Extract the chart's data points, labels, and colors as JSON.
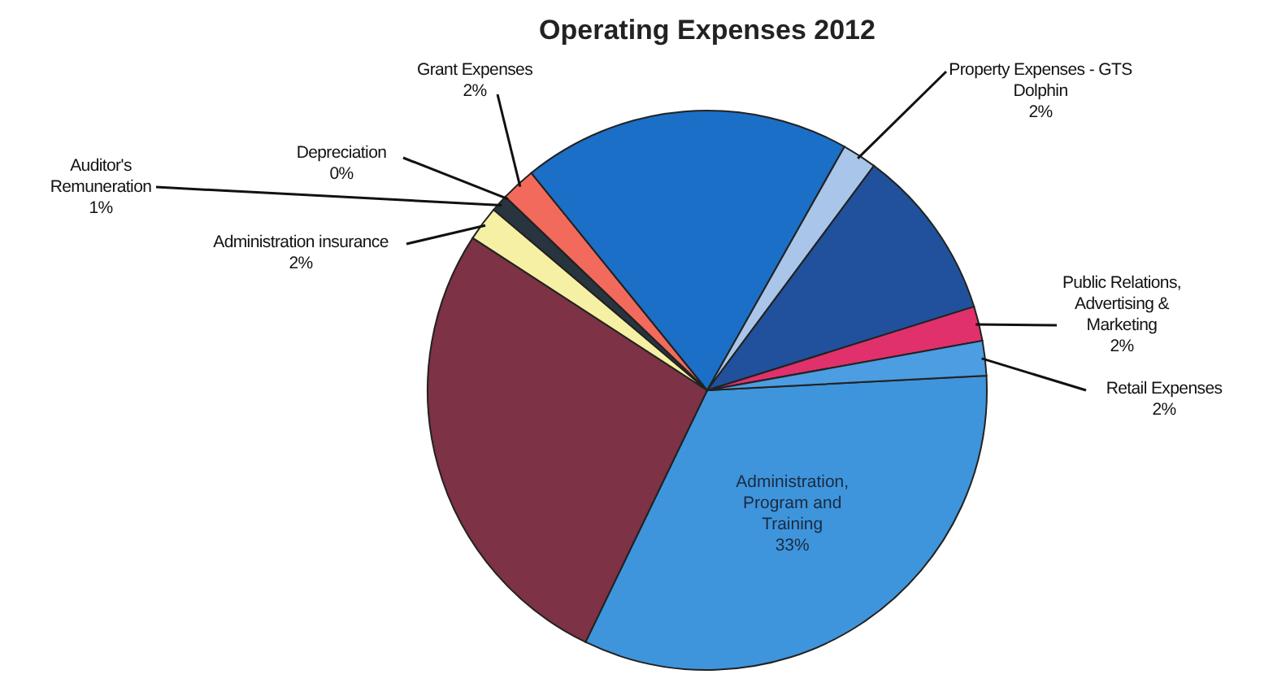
{
  "chart_data": {
    "type": "pie",
    "title": "Operating Expenses 2012",
    "categories": [
      "Administration, Program and Training",
      null,
      "Administration insurance",
      "Auditor's Remuneration",
      "Depreciation",
      "Grant Expenses",
      null,
      "Property Expenses - GTS Dolphin",
      null,
      "Public Relations, Advertising & Marketing",
      "Retail Expenses"
    ],
    "values": [
      33,
      27,
      2,
      1,
      0,
      2,
      19,
      2,
      10,
      2,
      2
    ],
    "value_labels": [
      "33%",
      null,
      "2%",
      "1%",
      "0%",
      "2%",
      null,
      "2%",
      null,
      "2%",
      "2%"
    ],
    "colors": [
      "#3f95dc",
      "#7d3245",
      "#f6f0a4",
      "#28343e",
      "#5d8196",
      "#f26a5c",
      "#1b6fc6",
      "#a9c5ea",
      "#21519c",
      "#e0316c",
      "#4c9de2"
    ]
  }
}
